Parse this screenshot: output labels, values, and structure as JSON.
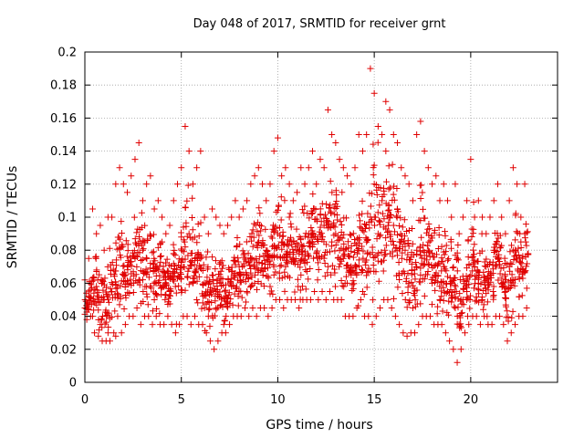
{
  "chart_data": {
    "type": "scatter",
    "title": "Day 048 of 2017, SRMTID for receiver grnt",
    "xlabel": "GPS time / hours",
    "ylabel": "SRMTID / TECUs",
    "xlim": [
      0,
      24.5
    ],
    "ylim": [
      0,
      0.2
    ],
    "xticks": [
      0,
      5,
      10,
      15,
      20
    ],
    "yticks": [
      0,
      0.02,
      0.04,
      0.06,
      0.08,
      0.1,
      0.12,
      0.14,
      0.16,
      0.18,
      0.2
    ],
    "xtick_labels": [
      "0",
      "5",
      "10",
      "15",
      "20"
    ],
    "ytick_labels": [
      "0",
      "0.02",
      "0.04",
      "0.06",
      "0.08",
      "0.1",
      "0.12",
      "0.14",
      "0.16",
      "0.18",
      "0.2"
    ],
    "grid": true,
    "marker": "+",
    "series_color": "#e00000",
    "series": [
      {
        "name": "SRMTID",
        "x": [
          0.0,
          0.2,
          0.4,
          0.6,
          0.8,
          1.0,
          1.2,
          1.4,
          1.6,
          1.8,
          2.0,
          2.2,
          2.4,
          2.6,
          2.8,
          3.0,
          3.2,
          3.4,
          3.6,
          3.8,
          4.0,
          4.2,
          4.4,
          4.6,
          4.8,
          5.0,
          5.2,
          5.4,
          5.6,
          5.8,
          6.0,
          6.2,
          6.4,
          6.6,
          6.8,
          7.0,
          7.2,
          7.4,
          7.6,
          7.8,
          8.0,
          8.2,
          8.4,
          8.6,
          8.8,
          9.0,
          9.2,
          9.4,
          9.6,
          9.8,
          10.0,
          10.2,
          10.4,
          10.6,
          10.8,
          11.0,
          11.2,
          11.4,
          11.6,
          11.8,
          12.0,
          12.2,
          12.4,
          12.6,
          12.8,
          13.0,
          13.2,
          13.4,
          13.6,
          13.8,
          14.0,
          14.2,
          14.4,
          14.6,
          14.8,
          15.0,
          15.2,
          15.4,
          15.6,
          15.8,
          16.0,
          16.2,
          16.4,
          16.6,
          16.8,
          17.0,
          17.2,
          17.4,
          17.6,
          17.8,
          18.0,
          18.2,
          18.4,
          18.6,
          18.8,
          19.0,
          19.2,
          19.4,
          19.6,
          19.8,
          20.0,
          20.2,
          20.4,
          20.6,
          20.8,
          21.0,
          21.2,
          21.4,
          21.6,
          21.8,
          22.0,
          22.2,
          22.4,
          22.6,
          22.8
        ],
        "y": [
          0.045,
          0.052,
          0.04,
          0.058,
          0.035,
          0.05,
          0.03,
          0.055,
          0.028,
          0.047,
          0.065,
          0.07,
          0.06,
          0.075,
          0.062,
          0.08,
          0.058,
          0.072,
          0.05,
          0.068,
          0.085,
          0.06,
          0.055,
          0.078,
          0.063,
          0.07,
          0.082,
          0.09,
          0.06,
          0.05,
          0.075,
          0.045,
          0.04,
          0.065,
          0.055,
          0.06,
          0.035,
          0.048,
          0.058,
          0.066,
          0.07,
          0.062,
          0.055,
          0.075,
          0.06,
          0.068,
          0.072,
          0.08,
          0.058,
          0.065,
          0.09,
          0.085,
          0.07,
          0.1,
          0.075,
          0.08,
          0.065,
          0.072,
          0.09,
          0.082,
          0.078,
          0.088,
          0.095,
          0.07,
          0.085,
          0.09,
          0.08,
          0.075,
          0.06,
          0.065,
          0.07,
          0.08,
          0.055,
          0.085,
          0.1,
          0.12,
          0.09,
          0.11,
          0.14,
          0.1,
          0.095,
          0.105,
          0.085,
          0.08,
          0.06,
          0.045,
          0.07,
          0.065,
          0.075,
          0.08,
          0.06,
          0.065,
          0.05,
          0.07,
          0.055,
          0.06,
          0.045,
          0.035,
          0.05,
          0.055,
          0.065,
          0.07,
          0.06,
          0.05,
          0.07,
          0.065,
          0.08,
          0.075,
          0.06,
          0.055,
          0.07,
          0.08,
          0.075,
          0.085,
          0.09
        ],
        "upper_envelope": [
          0.062,
          0.075,
          0.105,
          0.09,
          0.095,
          0.08,
          0.1,
          0.1,
          0.12,
          0.13,
          0.12,
          0.115,
          0.125,
          0.135,
          0.145,
          0.11,
          0.12,
          0.125,
          0.105,
          0.11,
          0.1,
          0.09,
          0.095,
          0.11,
          0.12,
          0.13,
          0.155,
          0.14,
          0.12,
          0.13,
          0.14,
          0.1,
          0.09,
          0.105,
          0.1,
          0.095,
          0.09,
          0.095,
          0.1,
          0.11,
          0.1,
          0.105,
          0.11,
          0.12,
          0.125,
          0.13,
          0.12,
          0.11,
          0.12,
          0.14,
          0.148,
          0.125,
          0.13,
          0.12,
          0.11,
          0.115,
          0.13,
          0.12,
          0.13,
          0.14,
          0.12,
          0.135,
          0.13,
          0.165,
          0.15,
          0.145,
          0.135,
          0.13,
          0.125,
          0.12,
          0.13,
          0.15,
          0.14,
          0.15,
          0.19,
          0.175,
          0.155,
          0.15,
          0.17,
          0.165,
          0.15,
          0.145,
          0.13,
          0.125,
          0.12,
          0.11,
          0.15,
          0.158,
          0.14,
          0.13,
          0.12,
          0.125,
          0.11,
          0.12,
          0.11,
          0.1,
          0.12,
          0.09,
          0.1,
          0.11,
          0.135,
          0.1,
          0.11,
          0.1,
          0.09,
          0.1,
          0.11,
          0.12,
          0.1,
          0.09,
          0.11,
          0.13,
          0.12,
          0.1,
          0.12
        ],
        "lower_envelope": [
          0.038,
          0.04,
          0.03,
          0.028,
          0.025,
          0.025,
          0.025,
          0.03,
          0.04,
          0.03,
          0.035,
          0.04,
          0.04,
          0.045,
          0.035,
          0.04,
          0.04,
          0.035,
          0.04,
          0.035,
          0.035,
          0.04,
          0.035,
          0.03,
          0.035,
          0.04,
          0.04,
          0.035,
          0.04,
          0.035,
          0.035,
          0.03,
          0.025,
          0.02,
          0.025,
          0.03,
          0.03,
          0.035,
          0.04,
          0.04,
          0.04,
          0.045,
          0.04,
          0.045,
          0.04,
          0.045,
          0.045,
          0.04,
          0.045,
          0.05,
          0.05,
          0.045,
          0.05,
          0.05,
          0.05,
          0.045,
          0.05,
          0.05,
          0.05,
          0.055,
          0.05,
          0.055,
          0.05,
          0.055,
          0.05,
          0.05,
          0.05,
          0.04,
          0.04,
          0.04,
          0.045,
          0.05,
          0.04,
          0.04,
          0.035,
          0.04,
          0.045,
          0.05,
          0.05,
          0.045,
          0.04,
          0.035,
          0.03,
          0.028,
          0.03,
          0.03,
          0.035,
          0.04,
          0.04,
          0.04,
          0.035,
          0.035,
          0.035,
          0.03,
          0.025,
          0.02,
          0.012,
          0.02,
          0.03,
          0.035,
          0.04,
          0.04,
          0.035,
          0.04,
          0.035,
          0.035,
          0.04,
          0.04,
          0.035,
          0.025,
          0.03,
          0.035,
          0.04,
          0.04,
          0.045
        ]
      }
    ]
  }
}
